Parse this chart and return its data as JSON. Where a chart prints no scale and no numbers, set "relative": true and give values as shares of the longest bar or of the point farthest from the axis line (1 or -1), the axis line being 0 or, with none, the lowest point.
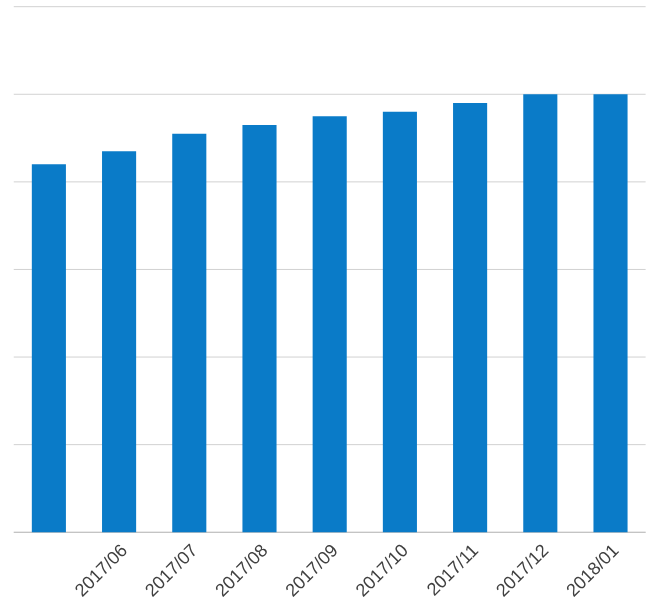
{
  "chart_data": {
    "type": "bar",
    "relative": true,
    "grid": "y",
    "color": "#0a7bc8",
    "categories": [
      null,
      "2017/06",
      "2017/07",
      "2017/08",
      "2017/09",
      "2017/10",
      "2017/11",
      "2017/12",
      "2018/01"
    ],
    "values": [
      0.84,
      0.87,
      0.91,
      0.93,
      0.95,
      0.96,
      0.98,
      1,
      1
    ]
  }
}
